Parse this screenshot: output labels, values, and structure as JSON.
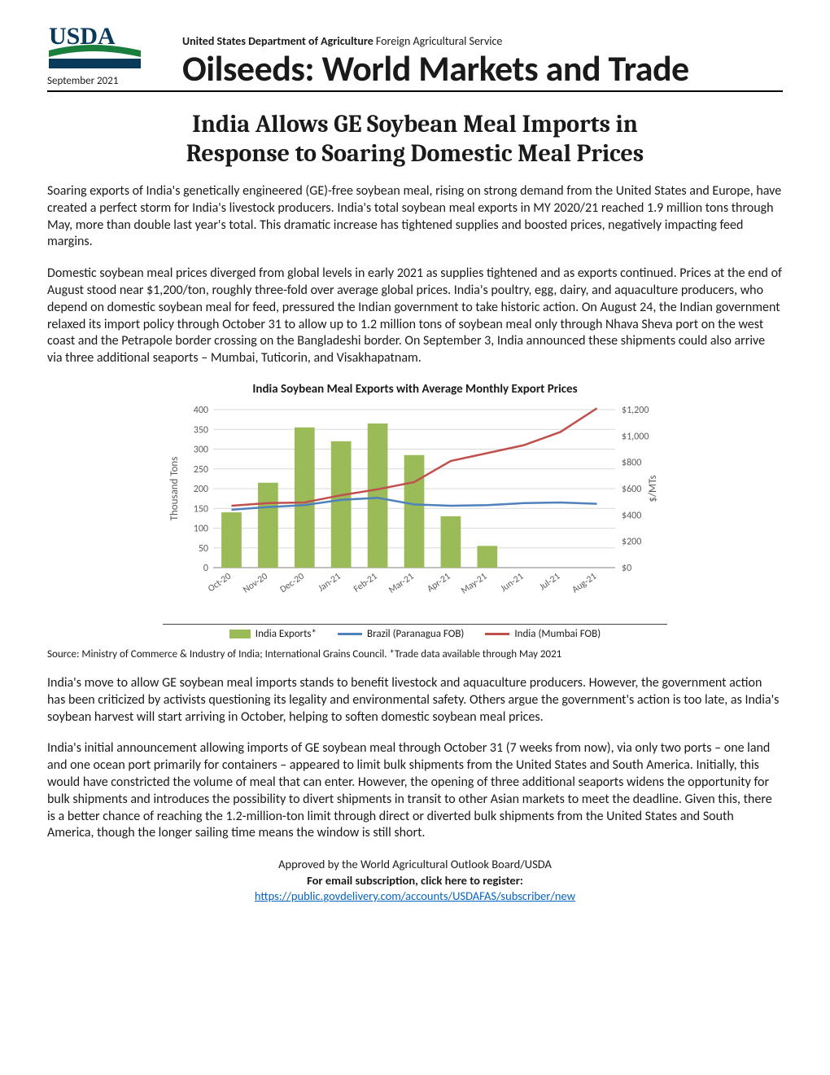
{
  "header": {
    "date": "September 2021",
    "dept_bold": "United States Department of Agriculture",
    "dept_rest": " Foreign Agricultural Service",
    "report_title": "Oilseeds: World Markets and Trade"
  },
  "logo": {
    "text": "USDA",
    "arc_color": "#1a7f3d",
    "bar_color": "#0a3a5a"
  },
  "article_title_l1": "India Allows GE Soybean Meal Imports in",
  "article_title_l2": "Response to Soaring Domestic Meal Prices",
  "paragraphs": {
    "p1": "Soaring exports of India's genetically engineered (GE)-free soybean meal, rising on strong demand from the United States and Europe, have created a perfect storm for India's livestock producers. India's total soybean meal exports in MY 2020/21 reached 1.9 million tons through May, more than double last year's total. This dramatic increase has tightened supplies and boosted prices, negatively impacting feed margins.",
    "p2": "Domestic soybean meal prices diverged from global levels in early 2021 as supplies tightened and as exports continued. Prices at the end of August stood near $1,200/ton, roughly three-fold over average global prices. India's poultry, egg, dairy, and aquaculture producers, who depend on domestic soybean meal for feed, pressured the Indian government to take historic action. On August 24, the Indian government relaxed its import policy through October 31 to allow up to 1.2 million tons of soybean meal only through Nhava Sheva port on the west coast and the Petrapole border crossing on the Bangladeshi border. On September 3, India announced these shipments could also arrive via three additional seaports – Mumbai, Tuticorin, and Visakhapatnam.",
    "p3": "India's move to allow GE soybean meal imports stands to benefit livestock and aquaculture producers. However, the government action has been criticized by activists questioning its legality and environmental safety. Others argue the government's action is too late, as India's soybean harvest will start arriving in October, helping to soften domestic soybean meal prices.",
    "p4": "India's initial announcement allowing imports of GE soybean meal through October 31 (7 weeks from now), via only two ports – one land and one ocean port primarily for containers – appeared to limit bulk shipments from the United States and South America. Initially, this would have constricted the volume of meal that can enter. However, the opening of three additional seaports widens the opportunity for bulk shipments and introduces the possibility to divert shipments in transit to other Asian markets to meet the deadline. Given this, there is a better chance of reaching the 1.2-million-ton limit through direct or diverted bulk shipments from the United States and South America, though the longer sailing time means the window is still short."
  },
  "chart": {
    "title": "India Soybean Meal Exports with Average Monthly Export Prices",
    "categories": [
      "Oct-20",
      "Nov-20",
      "Dec-20",
      "Jan-21",
      "Feb-21",
      "Mar-21",
      "Apr-21",
      "May-21",
      "Jun-21",
      "Jul-21",
      "Aug-21"
    ],
    "bars": [
      140,
      215,
      355,
      320,
      365,
      285,
      130,
      55,
      null,
      null,
      null
    ],
    "line_brazil": [
      440,
      460,
      475,
      515,
      530,
      480,
      470,
      475,
      490,
      495,
      485
    ],
    "line_india": [
      470,
      490,
      495,
      550,
      595,
      650,
      810,
      870,
      930,
      1030,
      1210
    ],
    "y_left": {
      "label": "Thousand Tons",
      "min": 0,
      "max": 400,
      "step": 50
    },
    "y_right": {
      "label": "$/MTs",
      "min": 0,
      "max": 1200,
      "step": 200
    },
    "colors": {
      "bar": "#9bbb59",
      "brazil": "#4f81bd",
      "india": "#c0504d",
      "grid": "#d9d9d9",
      "axis": "#808080",
      "text": "#595959"
    },
    "line_width": 2.5,
    "bar_width_ratio": 0.55,
    "legend": {
      "bar": "India Exports*",
      "brazil": "Brazil (Paranagua FOB)",
      "india": "India (Mumbai FOB)"
    }
  },
  "source_line": "Source: Ministry of Commerce & Industry of India; International Grains Council. *Trade data available through May 2021",
  "footer": {
    "approved": "Approved by the World Agricultural Outlook Board/USDA",
    "sub_bold": "For email subscription, click here to register:",
    "link": "https://public.govdelivery.com/accounts/USDAFAS/subscriber/new"
  }
}
